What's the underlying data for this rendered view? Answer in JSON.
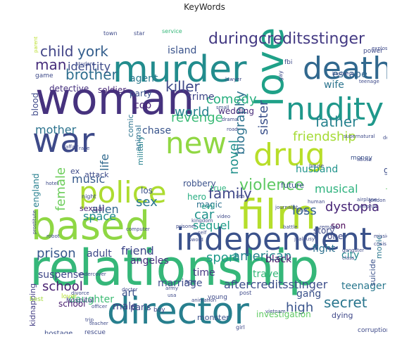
{
  "chart_data": {
    "type": "wordcloud",
    "title": "KeyWords",
    "background": "#ffffff",
    "colormap": "viridis",
    "words": [
      {
        "text": "relationship",
        "weight": 100,
        "color": "#35b779"
      },
      {
        "text": "woman",
        "weight": 86,
        "color": "#46327e"
      },
      {
        "text": "based",
        "weight": 82,
        "color": "#8fd744"
      },
      {
        "text": "film",
        "weight": 80,
        "color": "#b5de2b"
      },
      {
        "text": "murder",
        "weight": 74,
        "color": "#228c8d"
      },
      {
        "text": "director",
        "weight": 72,
        "color": "#277f8e"
      },
      {
        "text": "independent",
        "weight": 68,
        "color": "#3b528b"
      },
      {
        "text": "death",
        "weight": 62,
        "color": "#31688e"
      },
      {
        "text": "love",
        "weight": 62,
        "color": "#1fa188"
      },
      {
        "text": "war",
        "weight": 58,
        "color": "#3e4a89"
      },
      {
        "text": "police",
        "weight": 58,
        "color": "#addc30"
      },
      {
        "text": "new",
        "weight": 56,
        "color": "#90d743"
      },
      {
        "text": "drug",
        "weight": 56,
        "color": "#b8de29"
      },
      {
        "text": "nudity",
        "weight": 52,
        "color": "#1f988b"
      },
      {
        "text": "duringcreditsstinger",
        "weight": 40,
        "color": "#443a83"
      },
      {
        "text": "father",
        "weight": 32,
        "color": "#26828e"
      },
      {
        "text": "female",
        "weight": 26,
        "color": "#6ccd5a"
      },
      {
        "text": "violence",
        "weight": 30,
        "color": "#5ec962"
      },
      {
        "text": "friendship",
        "weight": 28,
        "color": "#a5db36"
      },
      {
        "text": "biography",
        "weight": 26,
        "color": "#2c728e"
      },
      {
        "text": "family",
        "weight": 28,
        "color": "#3f4788"
      },
      {
        "text": "sister",
        "weight": 26,
        "color": "#3b518b"
      },
      {
        "text": "novel",
        "weight": 26,
        "color": "#21918c"
      },
      {
        "text": "killer",
        "weight": 24,
        "color": "#3e4989"
      },
      {
        "text": "comedy",
        "weight": 24,
        "color": "#29af7f"
      },
      {
        "text": "child",
        "weight": 24,
        "color": "#414487"
      },
      {
        "text": "york",
        "weight": 24,
        "color": "#355f8d"
      },
      {
        "text": "brother",
        "weight": 24,
        "color": "#2e6e8e"
      },
      {
        "text": "man",
        "weight": 24,
        "color": "#472d7b"
      },
      {
        "text": "revenge",
        "weight": 24,
        "color": "#3aba76"
      },
      {
        "text": "world",
        "weight": 24,
        "color": "#25848e"
      },
      {
        "text": "mother",
        "weight": 20,
        "color": "#2c738e"
      },
      {
        "text": "identity",
        "weight": 18,
        "color": "#3e4c8a"
      },
      {
        "text": "sex",
        "weight": 24,
        "color": "#2a788e"
      },
      {
        "text": "prison",
        "weight": 24,
        "color": "#38588c"
      },
      {
        "text": "car",
        "weight": 22,
        "color": "#20928c"
      },
      {
        "text": "sport",
        "weight": 22,
        "color": "#1f9a8a"
      },
      {
        "text": "loss",
        "weight": 22,
        "color": "#34618d"
      },
      {
        "text": "friend",
        "weight": 20,
        "color": "#3f4889"
      },
      {
        "text": "american",
        "weight": 22,
        "color": "#25858e"
      },
      {
        "text": "school",
        "weight": 22,
        "color": "#481f70"
      },
      {
        "text": "secret",
        "weight": 22,
        "color": "#2a768e"
      },
      {
        "text": "high",
        "weight": 22,
        "color": "#3a548c"
      },
      {
        "text": "aftercreditsstinger",
        "weight": 20,
        "color": "#3d4e8a"
      },
      {
        "text": "dystopia",
        "weight": 20,
        "color": "#482677"
      },
      {
        "text": "alien",
        "weight": 20,
        "color": "#31688e"
      },
      {
        "text": "space",
        "weight": 20,
        "color": "#228b8d"
      },
      {
        "text": "sequel",
        "weight": 18,
        "color": "#1e9c89"
      },
      {
        "text": "musical",
        "weight": 18,
        "color": "#2db27d"
      },
      {
        "text": "music",
        "weight": 18,
        "color": "#375a8c"
      },
      {
        "text": "life",
        "weight": 18,
        "color": "#30698e"
      },
      {
        "text": "daughter",
        "weight": 16,
        "color": "#3dbc74"
      },
      {
        "text": "suspense",
        "weight": 16,
        "color": "#3f4788"
      },
      {
        "text": "agent",
        "weight": 16,
        "color": "#297a8e"
      },
      {
        "text": "island",
        "weight": 16,
        "color": "#3a538b"
      },
      {
        "text": "husband",
        "weight": 16,
        "color": "#20938c"
      },
      {
        "text": "wife",
        "weight": 14,
        "color": "#2b748e"
      },
      {
        "text": "escape",
        "weight": 14,
        "color": "#31668e"
      },
      {
        "text": "marriage",
        "weight": 14,
        "color": "#3e4c8a"
      },
      {
        "text": "teenager",
        "weight": 14,
        "color": "#2a788e"
      },
      {
        "text": "investigation",
        "weight": 14,
        "color": "#5ec962"
      },
      {
        "text": "gang",
        "weight": 14,
        "color": "#3b528b"
      },
      {
        "text": "city",
        "weight": 14,
        "color": "#23888e"
      },
      {
        "text": "fight",
        "weight": 14,
        "color": "#2d708e"
      },
      {
        "text": "black",
        "weight": 14,
        "color": "#481467"
      },
      {
        "text": "adult",
        "weight": 14,
        "color": "#3e4989"
      },
      {
        "text": "angeles",
        "weight": 14,
        "color": "#46327e"
      },
      {
        "text": "travel",
        "weight": 14,
        "color": "#35b779"
      },
      {
        "text": "time",
        "weight": 14,
        "color": "#453781"
      },
      {
        "text": "male",
        "weight": 14,
        "color": "#424086"
      },
      {
        "text": "art",
        "weight": 14,
        "color": "#3b528b"
      },
      {
        "text": "crime",
        "weight": 14,
        "color": "#3f4788"
      },
      {
        "text": "cop",
        "weight": 14,
        "color": "#482475"
      },
      {
        "text": "chase",
        "weight": 14,
        "color": "#39558c"
      },
      {
        "text": "party",
        "weight": 12,
        "color": "#3b528b"
      },
      {
        "text": "wedding",
        "weight": 12,
        "color": "#472c7a"
      },
      {
        "text": "detective",
        "weight": 12,
        "color": "#46307e"
      },
      {
        "text": "soldier",
        "weight": 12,
        "color": "#482878"
      },
      {
        "text": "robbery",
        "weight": 12,
        "color": "#3b528b"
      },
      {
        "text": "england",
        "weight": 12,
        "color": "#277f8e"
      },
      {
        "text": "paris",
        "weight": 12,
        "color": "#404588"
      },
      {
        "text": "blood",
        "weight": 12,
        "color": "#3e4989"
      },
      {
        "text": "hero",
        "weight": 12,
        "color": "#27ad81"
      },
      {
        "text": "magic",
        "weight": 12,
        "color": "#2c728e"
      },
      {
        "text": "los",
        "weight": 12,
        "color": "#3b528b"
      },
      {
        "text": "story",
        "weight": 12,
        "color": "#3e4a89"
      },
      {
        "text": "one",
        "weight": 12,
        "color": "#3f4889"
      },
      {
        "text": "son",
        "weight": 12,
        "color": "#440154"
      },
      {
        "text": "rape",
        "weight": 12,
        "color": "#3e4a89"
      },
      {
        "text": "gun",
        "weight": 12,
        "color": "#3d4e8a"
      },
      {
        "text": "future",
        "weight": 10,
        "color": "#3b528b"
      },
      {
        "text": "animal",
        "weight": 10,
        "color": "#2e6f8e"
      },
      {
        "text": "sexual",
        "weight": 10,
        "color": "#482071"
      },
      {
        "text": "attack",
        "weight": 10,
        "color": "#3e4c8a"
      },
      {
        "text": "monster",
        "weight": 10,
        "color": "#3b528b"
      },
      {
        "text": "kidnapping",
        "weight": 10,
        "color": "#433d84"
      },
      {
        "text": "suicide",
        "weight": 10,
        "color": "#3b528b"
      },
      {
        "text": "movie",
        "weight": 10,
        "color": "#2a778e"
      },
      {
        "text": "dying",
        "weight": 10,
        "color": "#3f4889"
      },
      {
        "text": "school",
        "weight": 10,
        "color": "#481b6d"
      },
      {
        "text": "hospital",
        "weight": 9,
        "color": "#424086"
      },
      {
        "text": "hostage",
        "weight": 9,
        "color": "#3d4d8a"
      },
      {
        "text": "evil",
        "weight": 10,
        "color": "#1fa287"
      },
      {
        "text": "true",
        "weight": 10,
        "color": "#2db27d"
      },
      {
        "text": "comic",
        "weight": 10,
        "color": "#2c738e"
      },
      {
        "text": "military",
        "weight": 10,
        "color": "#26828e"
      },
      {
        "text": "ex",
        "weight": 10,
        "color": "#3e4a89"
      },
      {
        "text": "money",
        "weight": 8,
        "color": "#3b528b"
      },
      {
        "text": "superhero",
        "weight": 8,
        "color": "#3b528b"
      },
      {
        "text": "corruption",
        "weight": 8,
        "color": "#3e4a89"
      },
      {
        "text": "rescue",
        "weight": 8,
        "color": "#3e4a89"
      },
      {
        "text": "lover",
        "weight": 8,
        "color": "#b2dd2d"
      },
      {
        "text": "best",
        "weight": 8,
        "color": "#a0da39"
      },
      {
        "text": "boy",
        "weight": 8,
        "color": "#3e4a89"
      },
      {
        "text": "young",
        "weight": 8,
        "color": "#3e4a89"
      },
      {
        "text": "age",
        "weight": 8,
        "color": "#3e4a89"
      },
      {
        "text": "post",
        "weight": 8,
        "color": "#3e4a89"
      },
      {
        "text": "game",
        "weight": 8,
        "color": "#3e4a89"
      },
      {
        "text": "power",
        "weight": 8,
        "color": "#3e4a89"
      },
      {
        "text": "fbi",
        "weight": 8,
        "color": "#3e4a89"
      },
      {
        "text": "dog",
        "weight": 8,
        "color": "#5ec962"
      },
      {
        "text": "intelligence",
        "weight": 7,
        "color": "#35b779"
      },
      {
        "text": "train",
        "weight": 8,
        "color": "#35b779"
      },
      {
        "text": "town",
        "weight": 7,
        "color": "#3e4a89"
      },
      {
        "text": "star",
        "weight": 7,
        "color": "#3e4a89"
      },
      {
        "text": "service",
        "weight": 7,
        "color": "#35b779"
      },
      {
        "text": "girl",
        "weight": 7,
        "color": "#3e4a89"
      },
      {
        "text": "night",
        "weight": 7,
        "color": "#3e4a89"
      },
      {
        "text": "gay",
        "weight": 7,
        "color": "#3e4a89"
      },
      {
        "text": "parent",
        "weight": 6,
        "color": "#b8de29"
      },
      {
        "text": "explosion",
        "weight": 6,
        "color": "#3e4a89"
      },
      {
        "text": "dark",
        "weight": 6,
        "color": "#3e4a89"
      },
      {
        "text": "teenage",
        "weight": 6,
        "color": "#3e4a89"
      },
      {
        "text": "business",
        "weight": 6,
        "color": "#3e4a89"
      },
      {
        "text": "pregnancy",
        "weight": 6,
        "color": "#3e4a89"
      },
      {
        "text": "lawyer",
        "weight": 6,
        "color": "#3e4a89"
      },
      {
        "text": "student",
        "weight": 6,
        "color": "#3e4a89"
      },
      {
        "text": "computer",
        "weight": 6,
        "color": "#3e4a89"
      },
      {
        "text": "robot",
        "weight": 6,
        "color": "#3e4a89"
      },
      {
        "text": "hotel",
        "weight": 6,
        "color": "#3e4a89"
      },
      {
        "text": "airplane",
        "weight": 6,
        "color": "#3e4a89"
      },
      {
        "text": "london",
        "weight": 6,
        "color": "#3e4a89"
      },
      {
        "text": "terrorist",
        "weight": 6,
        "color": "#3e4a89"
      },
      {
        "text": "prostitute",
        "weight": 6,
        "color": "#3e4a89"
      },
      {
        "text": "supernatural",
        "weight": 6,
        "color": "#3e4a89"
      },
      {
        "text": "house",
        "weight": 6,
        "color": "#3e4a89"
      },
      {
        "text": "abuse",
        "weight": 6,
        "color": "#3e4a89"
      },
      {
        "text": "dealer",
        "weight": 6,
        "color": "#3e4a89"
      },
      {
        "text": "self",
        "weight": 6,
        "color": "#3e4a89"
      },
      {
        "text": "sword",
        "weight": 6,
        "color": "#3e4a89"
      },
      {
        "text": "battle",
        "weight": 6,
        "color": "#3e4a89"
      },
      {
        "text": "remake",
        "weight": 6,
        "color": "#3e4a89"
      },
      {
        "text": "mission",
        "weight": 6,
        "color": "#3e4a89"
      },
      {
        "text": "crisis",
        "weight": 6,
        "color": "#3e4a89"
      },
      {
        "text": "gangster",
        "weight": 6,
        "color": "#3e4a89"
      },
      {
        "text": "class",
        "weight": 6,
        "color": "#3e4a89"
      },
      {
        "text": "street",
        "weight": 6,
        "color": "#3e4a89"
      },
      {
        "text": "british",
        "weight": 6,
        "color": "#3e4a89"
      },
      {
        "text": "usa",
        "weight": 6,
        "color": "#3e4a89"
      },
      {
        "text": "divorce",
        "weight": 6,
        "color": "#3e4a89"
      },
      {
        "text": "officer",
        "weight": 6,
        "color": "#3e4a89"
      },
      {
        "text": "teacher",
        "weight": 6,
        "color": "#3e4a89"
      },
      {
        "text": "vietnam",
        "weight": 6,
        "color": "#3e4a89"
      },
      {
        "text": "romance",
        "weight": 6,
        "color": "#3e4a89"
      },
      {
        "text": "drama",
        "weight": 6,
        "color": "#3e4a89"
      },
      {
        "text": "road",
        "weight": 6,
        "color": "#3e4a89"
      },
      {
        "text": "ship",
        "weight": 6,
        "color": "#3e4a89"
      },
      {
        "text": "human",
        "weight": 6,
        "color": "#3e4a89"
      },
      {
        "text": "kingdom",
        "weight": 6,
        "color": "#3e4a89"
      },
      {
        "text": "video",
        "weight": 6,
        "color": "#3e4a89"
      },
      {
        "text": "prisoner",
        "weight": 6,
        "color": "#3e4a89"
      },
      {
        "text": "race",
        "weight": 6,
        "color": "#3e4a89"
      },
      {
        "text": "affair",
        "weight": 6,
        "color": "#3e4a89"
      },
      {
        "text": "small",
        "weight": 6,
        "color": "#3e4a89"
      },
      {
        "text": "sea",
        "weight": 6,
        "color": "#3e4a89"
      },
      {
        "text": "journalist",
        "weight": 6,
        "color": "#3e4a89"
      },
      {
        "text": "jealousy",
        "weight": 6,
        "color": "#3e4a89"
      },
      {
        "text": "doctor",
        "weight": 6,
        "color": "#3e4a89"
      },
      {
        "text": "trip",
        "weight": 6,
        "color": "#3e4a89"
      },
      {
        "text": "army",
        "weight": 6,
        "color": "#3e4a89"
      },
      {
        "text": "undercover",
        "weight": 6,
        "color": "#3e4a89"
      },
      {
        "text": "animation",
        "weight": 6,
        "color": "#3e4a89"
      },
      {
        "text": "white",
        "weight": 6,
        "color": "#3e4a89"
      }
    ]
  }
}
